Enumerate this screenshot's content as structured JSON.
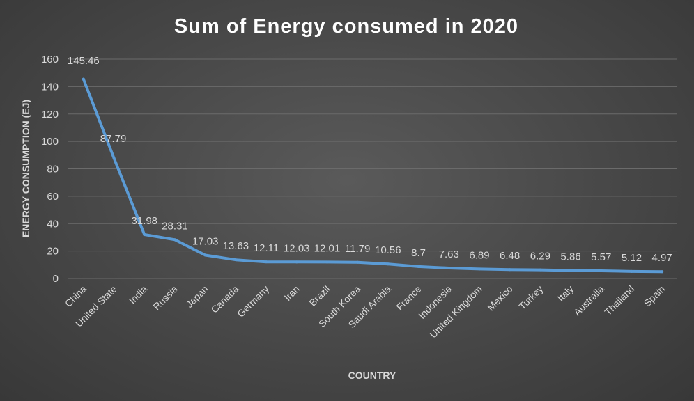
{
  "chart_data": {
    "type": "line",
    "title": "Sum of Energy consumed in 2020",
    "xlabel": "COUNTRY",
    "ylabel": "ENERGY CONSUMPTION (EJ)",
    "categories": [
      "China",
      "United State",
      "India",
      "Russia",
      "Japan",
      "Canada",
      "Germany",
      "Iran",
      "Brazil",
      "South Korea",
      "Saudi Arabia",
      "France",
      "Indonesia",
      "United Kingdom",
      "Mexico",
      "Turkey",
      "Italy",
      "Australia",
      "Thailand",
      "Spain"
    ],
    "series": [
      {
        "values": [
          145.46,
          87.79,
          31.98,
          28.31,
          17.03,
          13.63,
          12.11,
          12.03,
          12.01,
          11.79,
          10.56,
          8.7,
          7.63,
          6.89,
          6.48,
          6.29,
          5.86,
          5.57,
          5.12,
          4.97
        ],
        "labels": [
          "145.46",
          "87.79",
          "31.98",
          "28.31",
          "17.03",
          "13.63",
          "12.11",
          "12.03",
          "12.01",
          "11.79",
          "10.56",
          "8.7",
          "7.63",
          "6.89",
          "6.48",
          "6.29",
          "5.86",
          "5.57",
          "5.12",
          "4.97"
        ]
      }
    ],
    "yticks": [
      "0",
      "20",
      "40",
      "60",
      "80",
      "100",
      "120",
      "140",
      "160"
    ],
    "ylim": [
      0,
      160
    ],
    "grid": true,
    "legend": "none",
    "colors": {
      "line": "#5b9bd5",
      "text": "#d9d9d9",
      "title": "#ffffff",
      "grid": "#6b6b6b"
    }
  }
}
